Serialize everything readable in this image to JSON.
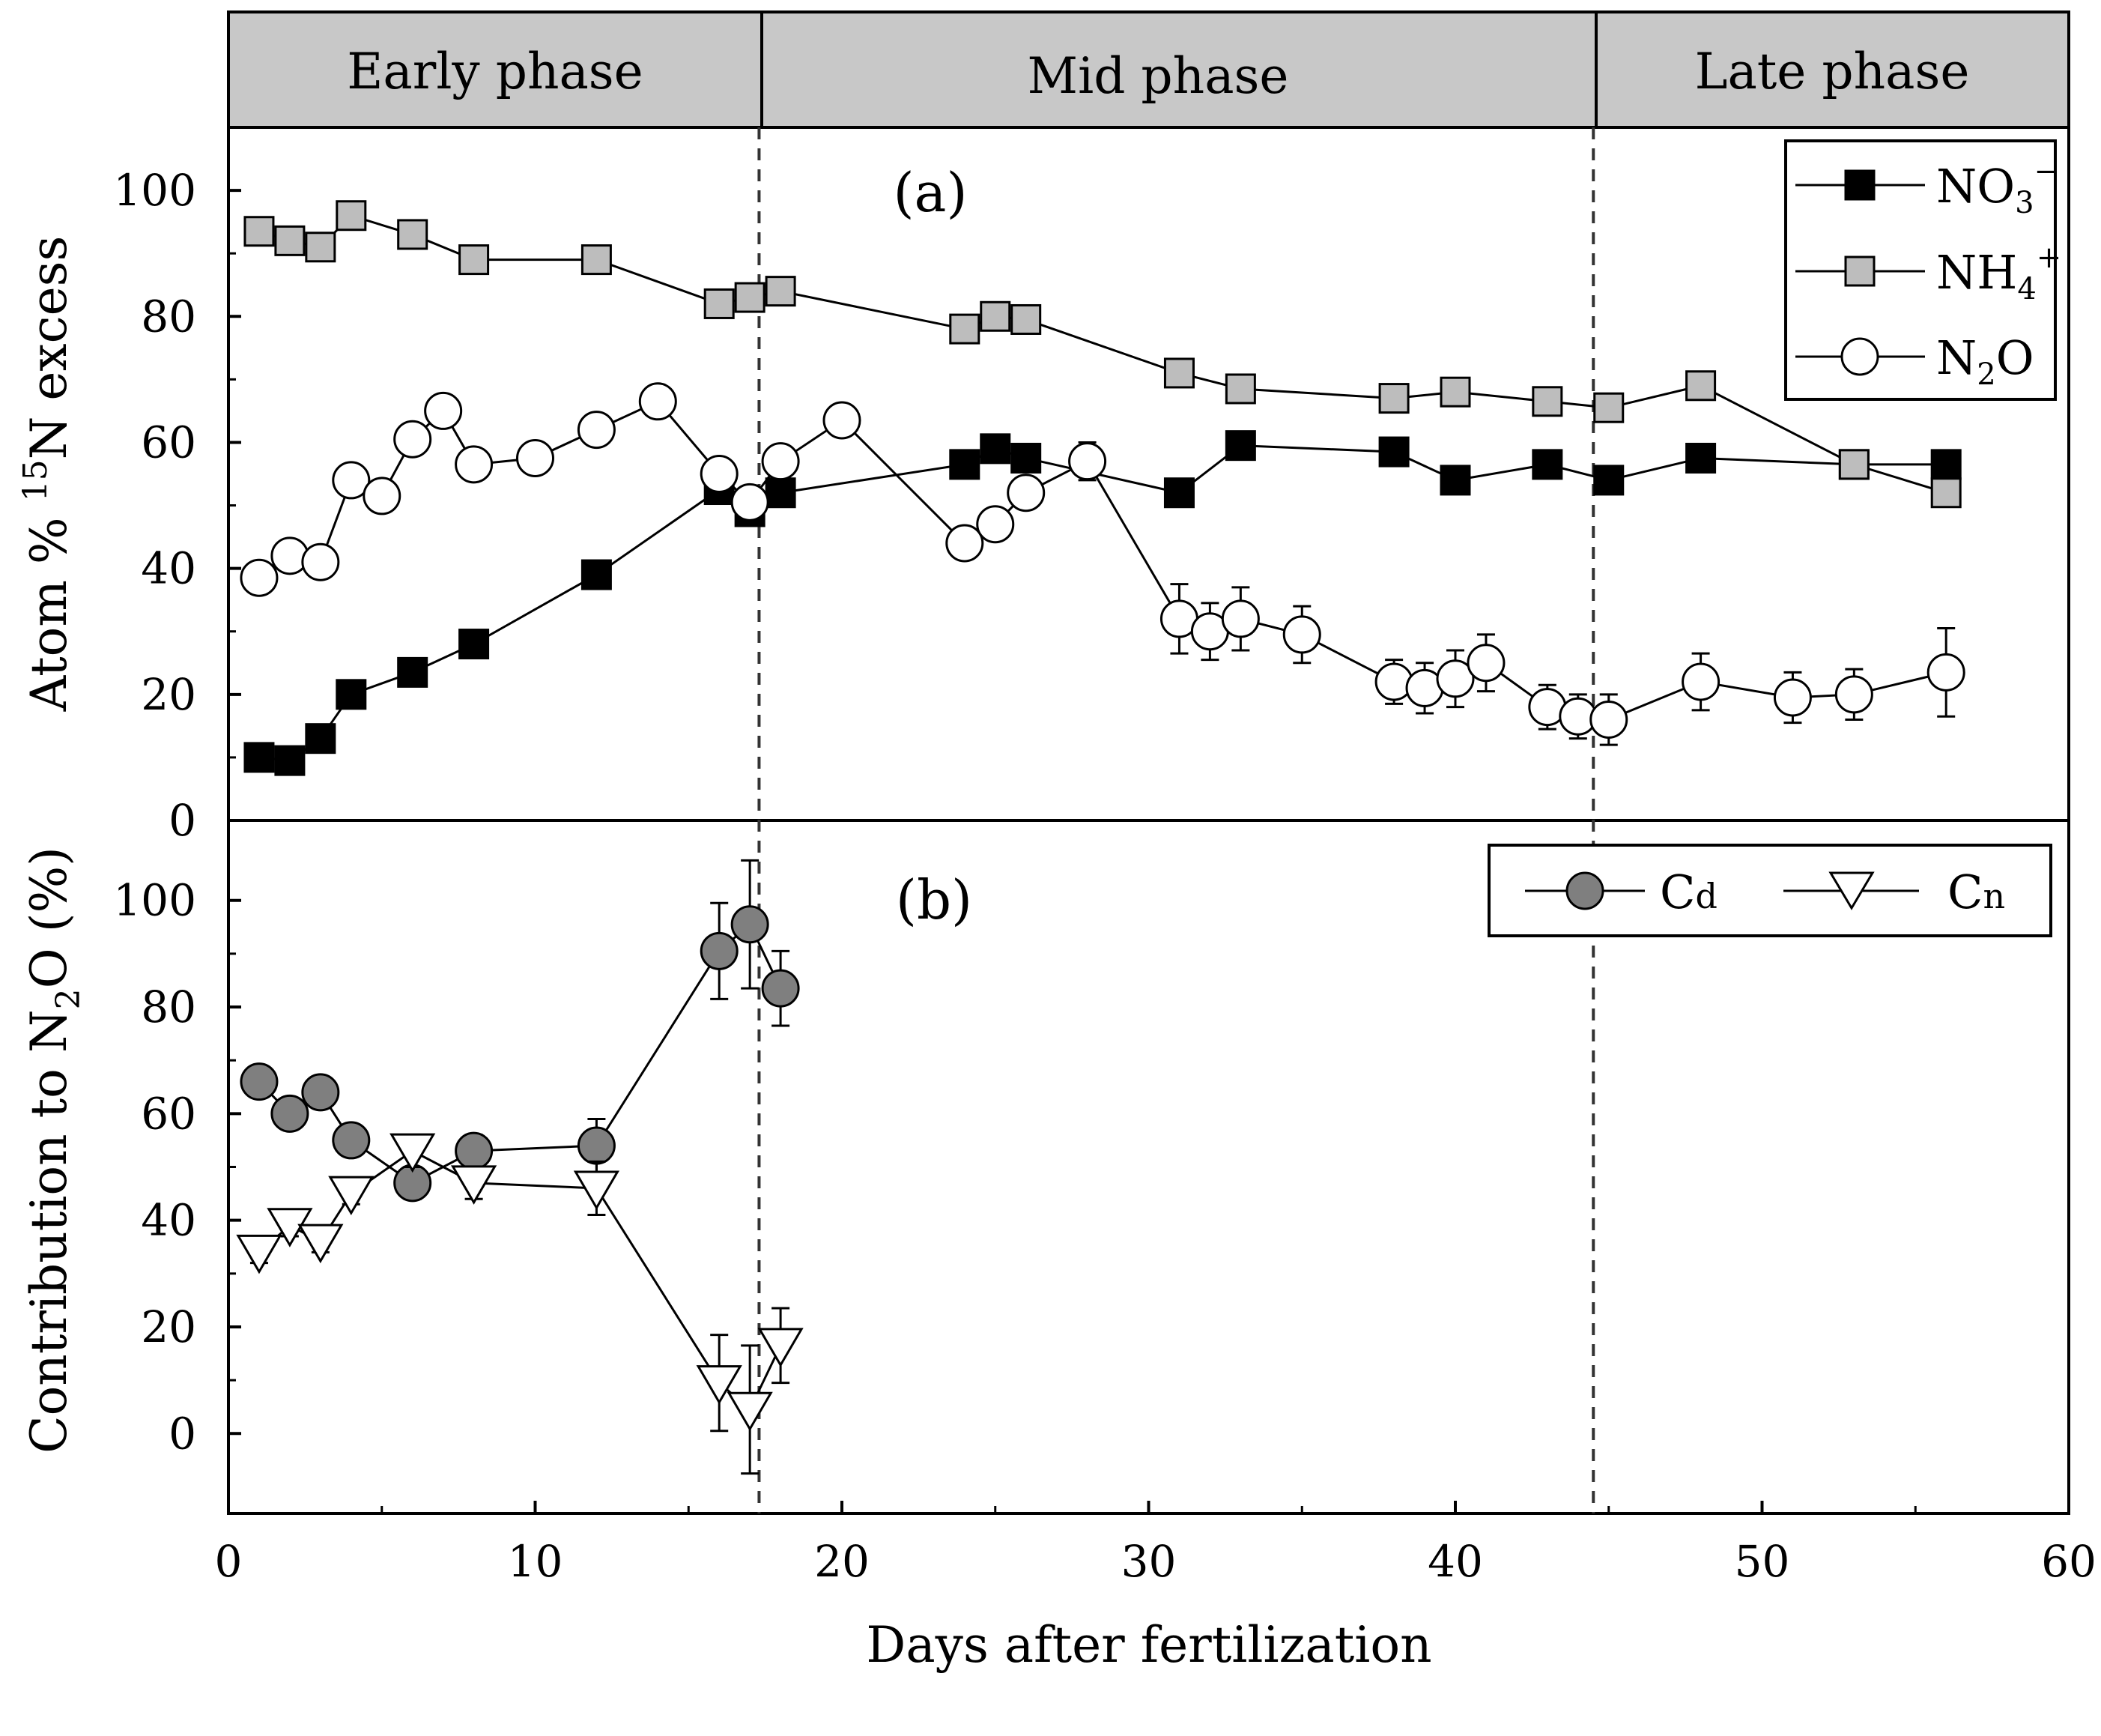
{
  "phases": [
    {
      "label": "Early phase",
      "start": 0,
      "end": 17.3
    },
    {
      "label": "Mid phase",
      "start": 17.3,
      "end": 44.5
    },
    {
      "label": "Late phase",
      "start": 44.5,
      "end": 60
    }
  ],
  "divider_days": [
    17.3,
    44.5
  ],
  "x_axis": {
    "label": "Days after fertilization",
    "min": 0,
    "max": 60,
    "ticks": [
      0,
      10,
      20,
      30,
      40,
      50,
      60
    ]
  },
  "chart_data": [
    {
      "type": "line",
      "panel_label": "(a)",
      "ylabel_prefix": "Atom % ",
      "ylabel_sup": "15",
      "ylabel_suffix": "N excess",
      "ylim": [
        0,
        110
      ],
      "yticks": [
        0,
        20,
        40,
        60,
        80,
        100
      ],
      "legend_position": "top-right",
      "series": [
        {
          "name": "NO3−",
          "legend_base": "NO",
          "legend_sub": "3",
          "legend_sup": "−",
          "marker": "square",
          "fill": "#000000",
          "x": [
            1,
            2,
            3,
            4,
            6,
            8,
            12,
            16,
            17,
            18,
            24,
            25,
            26,
            31,
            33,
            38,
            40,
            43,
            45,
            48,
            53,
            56
          ],
          "y": [
            10,
            9.5,
            13,
            20,
            23.5,
            28,
            39,
            52.5,
            49,
            52,
            56.5,
            59,
            57.5,
            52,
            59.5,
            58.5,
            54,
            56.5,
            54,
            57.5,
            56.5,
            56.5
          ],
          "err": [
            0,
            0,
            0,
            0,
            0,
            0,
            0,
            0,
            0,
            0,
            0,
            0,
            0,
            0,
            0,
            0,
            0,
            0,
            0,
            0,
            0,
            0
          ]
        },
        {
          "name": "NH4+",
          "legend_base": "NH",
          "legend_sub": "4",
          "legend_sup": "+",
          "marker": "square",
          "fill": "#bdbdbd",
          "x": [
            1,
            2,
            3,
            4,
            6,
            8,
            12,
            16,
            17,
            18,
            24,
            25,
            26,
            31,
            33,
            38,
            40,
            43,
            45,
            48,
            53,
            56
          ],
          "y": [
            93.5,
            92,
            91,
            96,
            93,
            89,
            89,
            82,
            83,
            84,
            78,
            80,
            79.5,
            71,
            68.5,
            67,
            68,
            66.5,
            65.5,
            69,
            56.5,
            52
          ],
          "err": [
            1.5,
            1.5,
            1.5,
            1.5,
            1.5,
            1.5,
            1.5,
            1.5,
            1.5,
            1.5,
            1.5,
            1.5,
            1.5,
            1.5,
            2,
            1.5,
            1.5,
            2,
            1.5,
            1.5,
            0.5,
            1.5
          ]
        },
        {
          "name": "N2O",
          "legend_base": "N",
          "legend_sub": "2",
          "legend_after": "O",
          "marker": "circle",
          "fill": "#ffffff",
          "x": [
            1,
            2,
            3,
            4,
            5,
            6,
            7,
            8,
            10,
            12,
            14,
            16,
            17,
            18,
            20,
            24,
            25,
            26,
            28,
            31,
            32,
            33,
            35,
            38,
            39,
            40,
            41,
            43,
            44,
            45,
            48,
            51,
            53,
            56
          ],
          "y": [
            38.5,
            42,
            41,
            54,
            51.5,
            60.5,
            65,
            56.5,
            57.5,
            62,
            66.5,
            55,
            50.5,
            57,
            63.5,
            44,
            47,
            52,
            57,
            32,
            30,
            32,
            29.5,
            22,
            21,
            22.5,
            25,
            18,
            16.5,
            16,
            22,
            19.5,
            20,
            23.5
          ],
          "err": [
            1.5,
            1.5,
            1.5,
            1.5,
            1.5,
            1.5,
            1.5,
            1.5,
            1.5,
            1.5,
            1.5,
            1,
            1,
            1,
            1,
            1.5,
            1.5,
            1,
            3,
            5.5,
            4.5,
            5,
            4.5,
            3.5,
            4,
            4.5,
            4.5,
            3.5,
            3.5,
            4,
            4.5,
            4,
            4,
            7
          ]
        }
      ]
    },
    {
      "type": "line",
      "panel_label": "(b)",
      "ylabel_prefix": "Contribution to N",
      "ylabel_sub": "2",
      "ylabel_suffix": "O (%)",
      "ylim": [
        -15,
        115
      ],
      "yticks": [
        0,
        20,
        40,
        60,
        80,
        100
      ],
      "legend_position": "top-right",
      "series": [
        {
          "name": "Cd",
          "legend_base": "C",
          "legend_small": "d",
          "marker": "circle",
          "fill": "#7f7f7f",
          "x": [
            1,
            2,
            3,
            4,
            6,
            8,
            12,
            16,
            17,
            18
          ],
          "y": [
            66,
            60,
            64,
            55,
            47,
            53,
            54,
            90.5,
            95.5,
            83.5
          ],
          "err": [
            2,
            2,
            2,
            2,
            3,
            3,
            5,
            9,
            12,
            7
          ]
        },
        {
          "name": "Cn",
          "legend_base": "C",
          "legend_small": "n",
          "marker": "triangle-down",
          "fill": "#ffffff",
          "x": [
            1,
            2,
            3,
            4,
            6,
            8,
            12,
            16,
            17,
            18
          ],
          "y": [
            34,
            39,
            36,
            45,
            53,
            47,
            46,
            9.5,
            4.5,
            16.5
          ],
          "err": [
            2,
            2,
            2,
            2,
            3,
            3,
            5,
            9,
            12,
            7
          ]
        }
      ]
    }
  ]
}
